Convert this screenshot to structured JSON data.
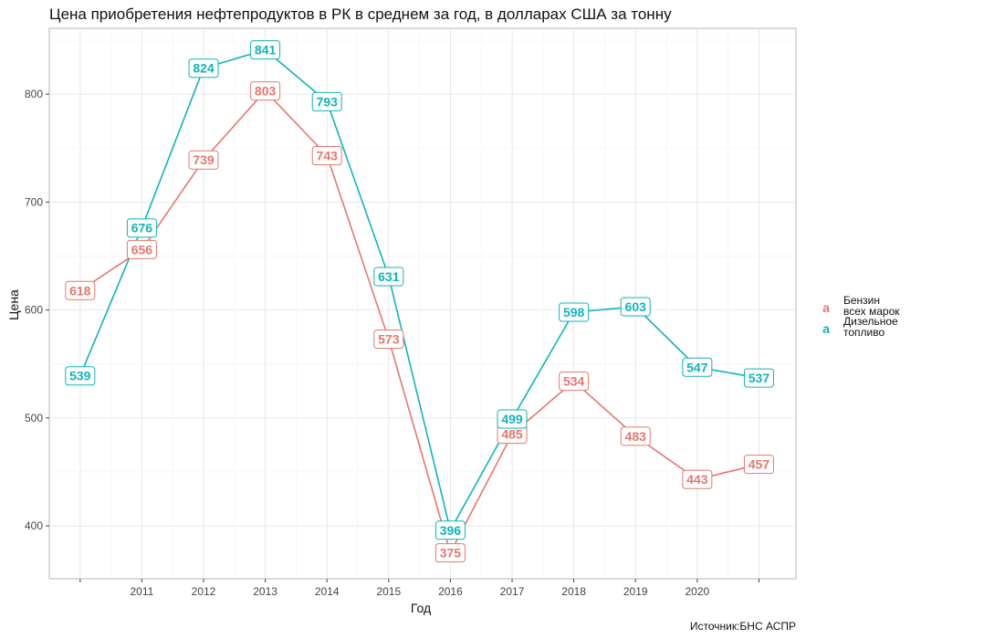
{
  "chart_data": {
    "type": "line",
    "title": "Цена приобретения нефтепродуктов в РК в среднем за год, в долларах США за тонну",
    "xlabel": "Год",
    "ylabel": "Цена",
    "caption": "Источник:БНС АСПР",
    "x_tick_labels": [
      "2011",
      "2012",
      "2013",
      "2014",
      "2015",
      "2016",
      "2017",
      "2018",
      "2019",
      "2020"
    ],
    "x": [
      2010,
      2011,
      2012,
      2013,
      2014,
      2015,
      2016,
      2017,
      2018,
      2019,
      2020,
      2021
    ],
    "y_ticks": [
      400,
      500,
      600,
      700,
      800
    ],
    "xlim": [
      2009.5,
      2021.6
    ],
    "ylim": [
      351,
      861
    ],
    "grid": true,
    "legend_position": "right",
    "series": [
      {
        "name_lines": [
          "Бензин",
          "всех марок"
        ],
        "color": "#E7766F",
        "values": [
          618,
          656,
          739,
          803,
          743,
          573,
          375,
          485,
          534,
          483,
          443,
          457
        ]
      },
      {
        "name_lines": [
          "Дизельное",
          "топливо"
        ],
        "color": "#12B3BA",
        "values": [
          539,
          676,
          824,
          841,
          793,
          631,
          396,
          499,
          598,
          603,
          547,
          537
        ]
      }
    ],
    "legend_key_glyph": "a"
  }
}
